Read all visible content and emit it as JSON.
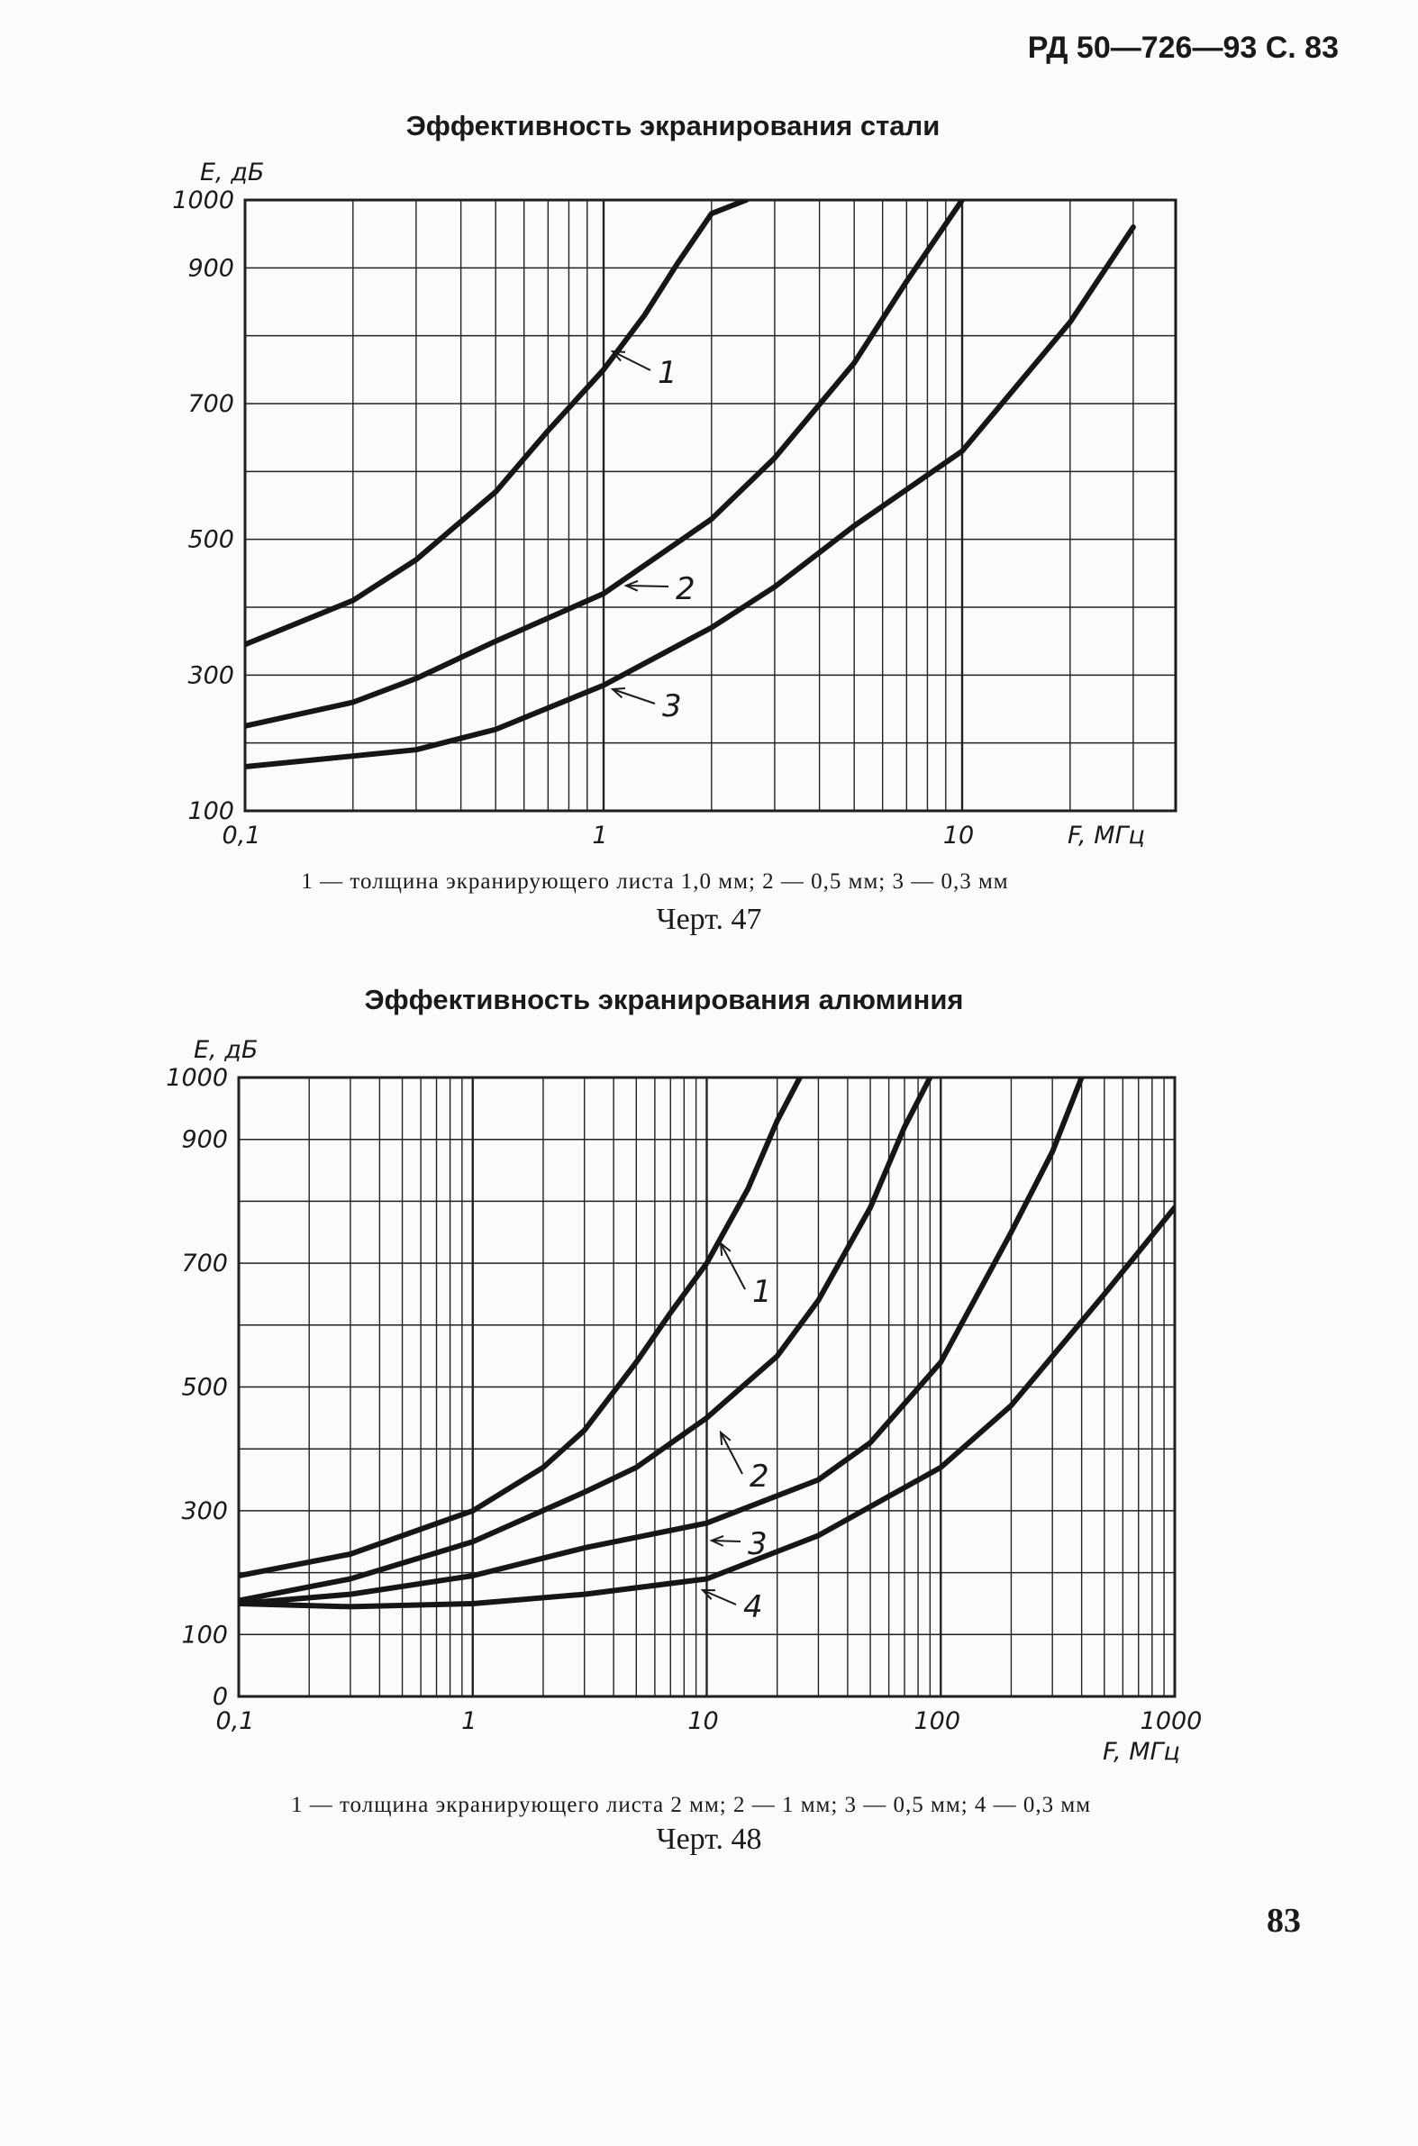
{
  "header": {
    "document": "РД 50—726—93 С. 83"
  },
  "page_number": "83",
  "chart_data": [
    {
      "type": "line",
      "title": "Эффективность экранирования стали",
      "ylabel": "E, дБ",
      "xlabel": "F, МГц",
      "x_scale": "log",
      "xlim": [
        0.1,
        60
      ],
      "ylim": [
        100,
        1000
      ],
      "x_ticks": [
        0.1,
        1,
        10
      ],
      "x_tick_labels": [
        "0,1",
        "1",
        "10"
      ],
      "y_ticks": [
        100,
        300,
        500,
        700,
        900,
        1000
      ],
      "y_tick_labels": [
        "100",
        "300",
        "500",
        "700",
        "900",
        "1000"
      ],
      "series": [
        {
          "name": "1",
          "x": [
            0.1,
            0.2,
            0.3,
            0.5,
            0.7,
            1,
            1.3,
            1.6,
            2.0,
            2.5
          ],
          "y": [
            345,
            410,
            470,
            570,
            660,
            750,
            830,
            905,
            980,
            1000
          ]
        },
        {
          "name": "2",
          "x": [
            0.1,
            0.2,
            0.3,
            0.5,
            1,
            2,
            3,
            5,
            7,
            10
          ],
          "y": [
            225,
            260,
            295,
            350,
            420,
            530,
            620,
            760,
            880,
            1000
          ]
        },
        {
          "name": "3",
          "x": [
            0.1,
            0.3,
            0.5,
            1,
            2,
            3,
            5,
            10,
            20,
            30
          ],
          "y": [
            165,
            190,
            220,
            285,
            370,
            430,
            520,
            630,
            820,
            960
          ]
        }
      ],
      "curve_labels": [
        "1",
        "2",
        "3"
      ],
      "caption": "1 — толщина экранирующего листа 1,0 мм;   2 — 0,5 мм;   3 — 0,3 мм",
      "figure_label": "Черт. 47"
    },
    {
      "type": "line",
      "title": "Эффективность экранирования алюминия",
      "ylabel": "E, дБ",
      "xlabel": "F, МГц",
      "x_scale": "log",
      "xlim": [
        0.1,
        1000
      ],
      "ylim": [
        0,
        1000
      ],
      "x_ticks": [
        0.1,
        1,
        10,
        100,
        1000
      ],
      "x_tick_labels": [
        "0,1",
        "1",
        "10",
        "100",
        "1000"
      ],
      "y_ticks": [
        0,
        100,
        300,
        500,
        700,
        900,
        1000
      ],
      "y_tick_labels": [
        "0",
        "100",
        "300",
        "500",
        "700",
        "900",
        "1000"
      ],
      "series": [
        {
          "name": "1",
          "x": [
            0.1,
            0.3,
            1,
            2,
            3,
            5,
            7,
            10,
            15,
            20,
            25
          ],
          "y": [
            195,
            230,
            300,
            370,
            430,
            540,
            620,
            700,
            820,
            930,
            1000
          ]
        },
        {
          "name": "2",
          "x": [
            0.1,
            0.3,
            1,
            3,
            5,
            10,
            20,
            30,
            50,
            70,
            90
          ],
          "y": [
            155,
            190,
            250,
            330,
            370,
            450,
            550,
            640,
            790,
            920,
            1000
          ]
        },
        {
          "name": "3",
          "x": [
            0.1,
            0.3,
            1,
            3,
            10,
            30,
            50,
            100,
            200,
            300,
            400
          ],
          "y": [
            150,
            165,
            195,
            240,
            280,
            350,
            410,
            540,
            750,
            880,
            1000
          ]
        },
        {
          "name": "4",
          "x": [
            0.1,
            0.3,
            1,
            3,
            10,
            30,
            100,
            200,
            500,
            1000
          ],
          "y": [
            150,
            145,
            150,
            165,
            190,
            260,
            370,
            470,
            650,
            790
          ]
        }
      ],
      "curve_labels": [
        "1",
        "2",
        "3",
        "4"
      ],
      "caption": "1 — толщина   экранирующего   листа 2 мм;   2 — 1 мм;   3 — 0,5 мм;   4 — 0,3 мм",
      "figure_label": "Черт. 48"
    }
  ]
}
